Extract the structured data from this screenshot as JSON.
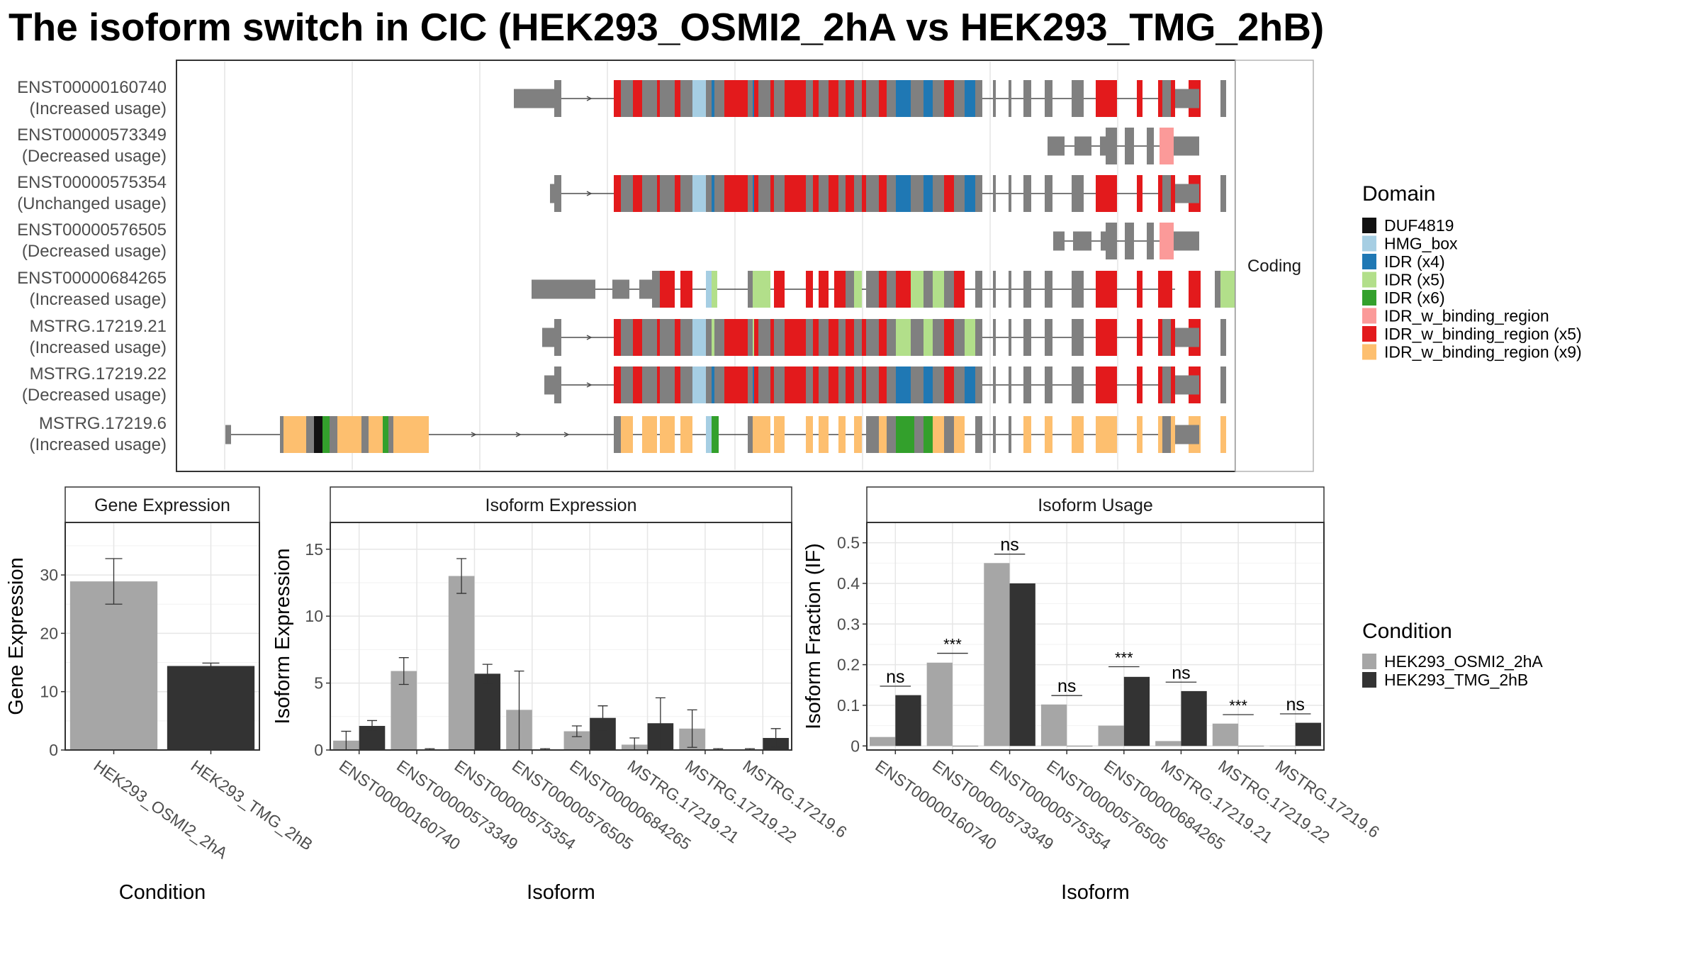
{
  "title": "The isoform switch in CIC (HEK293_OSMI2_2hA vs HEK293_TMG_2hB)",
  "structure": {
    "strip_label": "Coding",
    "transcripts": [
      {
        "id": "ENST00000160740",
        "usage": "(Increased usage)"
      },
      {
        "id": "ENST00000573349",
        "usage": "(Decreased usage)"
      },
      {
        "id": "ENST00000575354",
        "usage": "(Unchanged usage)"
      },
      {
        "id": "ENST00000576505",
        "usage": "(Decreased usage)"
      },
      {
        "id": "ENST00000684265",
        "usage": "(Increased usage)"
      },
      {
        "id": "MSTRG.17219.21",
        "usage": "(Increased usage)"
      },
      {
        "id": "MSTRG.17219.22",
        "usage": "(Decreased usage)"
      },
      {
        "id": "MSTRG.17219.6",
        "usage": "(Increased usage)"
      }
    ],
    "domain_legend": {
      "title": "Domain",
      "entries": [
        {
          "label": "DUF4819",
          "color": "#111111"
        },
        {
          "label": "HMG_box",
          "color": "#a6cee3"
        },
        {
          "label": "IDR (x4)",
          "color": "#1f78b4"
        },
        {
          "label": "IDR (x5)",
          "color": "#b2df8a"
        },
        {
          "label": "IDR (x6)",
          "color": "#33a02c"
        },
        {
          "label": "IDR_w_binding_region",
          "color": "#fb9a99"
        },
        {
          "label": "IDR_w_binding_region (x5)",
          "color": "#e31a1c"
        },
        {
          "label": "IDR_w_binding_region (x9)",
          "color": "#fdbf6f"
        }
      ]
    }
  },
  "condition_legend": {
    "title": "Condition",
    "entries": [
      {
        "label": "HEK293_OSMI2_2hA",
        "color": "#a6a6a6"
      },
      {
        "label": "HEK293_TMG_2hB",
        "color": "#333333"
      }
    ]
  },
  "chart_data": [
    {
      "type": "bar",
      "title": "Gene Expression",
      "xlabel": "Condition",
      "ylabel": "Gene Expression",
      "ylim": [
        0,
        39
      ],
      "yticks": [
        0,
        10,
        20,
        30
      ],
      "categories": [
        "HEK293_OSMI2_2hA",
        "HEK293_TMG_2hB"
      ],
      "values": [
        28.9,
        14.4
      ],
      "errors": [
        [
          25.0,
          32.8
        ],
        [
          13.9,
          14.9
        ]
      ],
      "colors": [
        "#a6a6a6",
        "#333333"
      ]
    },
    {
      "type": "bar",
      "title": "Isoform Expression",
      "xlabel": "Isoform",
      "ylabel": "Isoform Expression",
      "ylim": [
        0,
        17
      ],
      "yticks": [
        0,
        5,
        10,
        15
      ],
      "categories": [
        "ENST00000160740",
        "ENST00000573349",
        "ENST00000575354",
        "ENST00000576505",
        "ENST00000684265",
        "MSTRG.17219.21",
        "MSTRG.17219.22",
        "MSTRG.17219.6"
      ],
      "series": [
        {
          "name": "HEK293_OSMI2_2hA",
          "values": [
            0.7,
            5.9,
            13.0,
            3.0,
            1.4,
            0.4,
            1.6,
            0.05
          ],
          "errors": [
            [
              0.0,
              1.4
            ],
            [
              4.9,
              6.9
            ],
            [
              11.7,
              14.3
            ],
            [
              0.0,
              5.9
            ],
            [
              1.0,
              1.8
            ],
            [
              0.0,
              0.9
            ],
            [
              0.2,
              3.0
            ],
            [
              0.0,
              0.1
            ]
          ]
        },
        {
          "name": "HEK293_TMG_2hB",
          "values": [
            1.8,
            0.05,
            5.7,
            0.05,
            2.4,
            2.0,
            0.05,
            0.9
          ],
          "errors": [
            [
              1.4,
              2.2
            ],
            [
              0.0,
              0.1
            ],
            [
              5.0,
              6.4
            ],
            [
              0.0,
              0.1
            ],
            [
              1.5,
              3.3
            ],
            [
              0.0,
              3.9
            ],
            [
              0.0,
              0.1
            ],
            [
              0.2,
              1.6
            ]
          ]
        }
      ]
    },
    {
      "type": "bar",
      "title": "Isoform Usage",
      "xlabel": "Isoform",
      "ylabel": "Isoform Fraction (IF)",
      "ylim": [
        -0.01,
        0.55
      ],
      "yticks": [
        0.0,
        0.1,
        0.2,
        0.3,
        0.4,
        0.5
      ],
      "categories": [
        "ENST00000160740",
        "ENST00000573349",
        "ENST00000575354",
        "ENST00000576505",
        "ENST00000684265",
        "MSTRG.17219.21",
        "MSTRG.17219.22",
        "MSTRG.17219.6"
      ],
      "series": [
        {
          "name": "HEK293_OSMI2_2hA",
          "values": [
            0.022,
            0.205,
            0.45,
            0.102,
            0.05,
            0.012,
            0.055,
            0.0
          ]
        },
        {
          "name": "HEK293_TMG_2hB",
          "values": [
            0.125,
            0.0,
            0.4,
            0.0,
            0.17,
            0.135,
            0.0,
            0.057
          ]
        }
      ],
      "significance": [
        {
          "label": "ns",
          "y": 0.147
        },
        {
          "label": "***",
          "y": 0.228
        },
        {
          "label": "ns",
          "y": 0.472
        },
        {
          "label": "ns",
          "y": 0.124
        },
        {
          "label": "***",
          "y": 0.195
        },
        {
          "label": "ns",
          "y": 0.157
        },
        {
          "label": "***",
          "y": 0.077
        },
        {
          "label": "ns",
          "y": 0.079
        }
      ]
    }
  ]
}
